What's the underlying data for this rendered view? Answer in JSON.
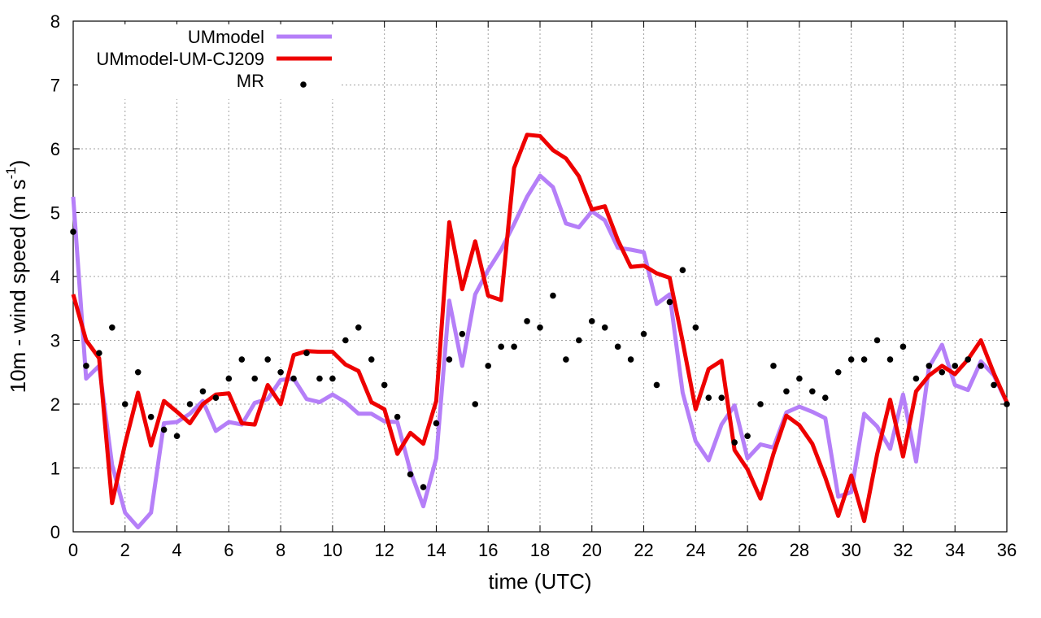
{
  "chart_data": {
    "type": "line",
    "title": "",
    "xlabel": "time (UTC)",
    "ylabel": {
      "prefix": "10m - wind speed  (m s",
      "sup": "-1",
      "suffix": ")"
    },
    "xlim": [
      0,
      36
    ],
    "ylim": [
      0,
      8
    ],
    "xticks": [
      0,
      2,
      4,
      6,
      8,
      10,
      12,
      14,
      16,
      18,
      20,
      22,
      24,
      26,
      28,
      30,
      32,
      34,
      36
    ],
    "yticks": [
      0,
      1,
      2,
      3,
      4,
      5,
      6,
      7,
      8
    ],
    "grid": true,
    "legend_position": "top-left",
    "colors": {
      "UMmodel": "#b57ff8",
      "UMmodel-UM-CJ209": "#ee0000",
      "MR": "#000000"
    },
    "series": [
      {
        "name": "UMmodel",
        "style": "line",
        "x": [
          0,
          0.5,
          1,
          1.5,
          2,
          2.5,
          3,
          3.5,
          4,
          4.5,
          5,
          5.5,
          6,
          6.5,
          7,
          7.5,
          8,
          8.5,
          9,
          9.5,
          10,
          10.5,
          11,
          11.5,
          12,
          12.5,
          13,
          13.5,
          14,
          14.5,
          15,
          15.5,
          16,
          16.5,
          17,
          17.5,
          18,
          18.5,
          19,
          19.5,
          20,
          20.5,
          21,
          21.5,
          22,
          22.5,
          23,
          23.5,
          24,
          24.5,
          25,
          25.5,
          26,
          26.5,
          27,
          27.5,
          28,
          28.5,
          29,
          29.5,
          30,
          30.5,
          31,
          31.5,
          32,
          32.5,
          33,
          33.5,
          34,
          34.5,
          35,
          35.5,
          36
        ],
        "values": [
          5.25,
          2.4,
          2.6,
          1.05,
          0.3,
          0.07,
          0.3,
          1.7,
          1.72,
          1.85,
          2.05,
          1.58,
          1.72,
          1.68,
          2.02,
          2.08,
          2.38,
          2.4,
          2.08,
          2.03,
          2.15,
          2.03,
          1.85,
          1.85,
          1.73,
          1.72,
          0.95,
          0.4,
          1.15,
          3.62,
          2.6,
          3.72,
          4.1,
          4.42,
          4.82,
          5.25,
          5.58,
          5.4,
          4.83,
          4.77,
          5.02,
          4.88,
          4.45,
          4.42,
          4.38,
          3.57,
          3.72,
          2.18,
          1.42,
          1.12,
          1.68,
          1.98,
          1.15,
          1.37,
          1.32,
          1.87,
          1.96,
          1.88,
          1.78,
          0.55,
          0.62,
          1.85,
          1.65,
          1.3,
          2.15,
          1.1,
          2.58,
          2.93,
          2.3,
          2.22,
          2.67,
          2.45,
          2.02
        ]
      },
      {
        "name": "UMmodel-UM-CJ209",
        "style": "line",
        "x": [
          0,
          0.5,
          1,
          1.5,
          2,
          2.5,
          3,
          3.5,
          4,
          4.5,
          5,
          5.5,
          6,
          6.5,
          7,
          7.5,
          8,
          8.5,
          9,
          9.5,
          10,
          10.5,
          11,
          11.5,
          12,
          12.5,
          13,
          13.5,
          14,
          14.5,
          15,
          15.5,
          16,
          16.5,
          17,
          17.5,
          18,
          18.5,
          19,
          19.5,
          20,
          20.5,
          21,
          21.5,
          22,
          22.5,
          23,
          23.5,
          24,
          24.5,
          25,
          25.5,
          26,
          26.5,
          27,
          27.5,
          28,
          28.5,
          29,
          29.5,
          30,
          30.5,
          31,
          31.5,
          32,
          32.5,
          33,
          33.5,
          34,
          34.5,
          35,
          35.5,
          36
        ],
        "values": [
          3.72,
          3.0,
          2.72,
          0.45,
          1.38,
          2.18,
          1.35,
          2.05,
          1.88,
          1.7,
          2.0,
          2.15,
          2.17,
          1.7,
          1.68,
          2.3,
          2.0,
          2.77,
          2.83,
          2.82,
          2.82,
          2.62,
          2.52,
          2.03,
          1.92,
          1.22,
          1.55,
          1.38,
          2.05,
          4.85,
          3.8,
          4.55,
          3.7,
          3.63,
          5.7,
          6.22,
          6.2,
          5.98,
          5.85,
          5.57,
          5.05,
          5.1,
          4.57,
          4.15,
          4.17,
          4.05,
          3.98,
          2.98,
          1.92,
          2.55,
          2.68,
          1.28,
          0.98,
          0.52,
          1.22,
          1.82,
          1.67,
          1.38,
          0.85,
          0.25,
          0.88,
          0.17,
          1.22,
          2.07,
          1.18,
          2.2,
          2.45,
          2.6,
          2.47,
          2.7,
          3.0,
          2.48,
          2.03
        ]
      },
      {
        "name": "MR",
        "style": "points",
        "x": [
          0,
          0.5,
          1,
          1.5,
          2,
          2.5,
          3,
          3.5,
          4,
          4.5,
          5,
          5.5,
          6,
          6.5,
          7,
          7.5,
          8,
          8.5,
          9,
          9.5,
          10,
          10.5,
          11,
          11.5,
          12,
          12.5,
          13,
          13.5,
          14,
          14.5,
          15,
          15.5,
          16,
          16.5,
          17,
          17.5,
          18,
          18.5,
          19,
          19.5,
          20,
          20.5,
          21,
          21.5,
          22,
          22.5,
          23,
          23.5,
          24,
          24.5,
          25,
          25.5,
          26,
          26.5,
          27,
          27.5,
          28,
          28.5,
          29,
          29.5,
          30,
          30.5,
          31,
          31.5,
          32,
          32.5,
          33,
          33.5,
          34,
          34.5,
          35,
          35.5,
          36
        ],
        "values": [
          4.7,
          2.6,
          2.8,
          3.2,
          2.0,
          2.5,
          1.8,
          1.6,
          1.5,
          2.0,
          2.2,
          2.1,
          2.4,
          2.7,
          2.4,
          2.7,
          2.5,
          2.4,
          2.8,
          2.4,
          2.4,
          3.0,
          3.2,
          2.7,
          2.3,
          1.8,
          0.9,
          0.7,
          1.7,
          2.7,
          3.1,
          2.0,
          2.6,
          2.9,
          2.9,
          3.3,
          3.2,
          3.7,
          2.7,
          3.0,
          3.3,
          3.2,
          2.9,
          2.7,
          3.1,
          2.3,
          3.6,
          4.1,
          3.2,
          2.1,
          2.1,
          1.4,
          1.5,
          2.0,
          2.6,
          2.2,
          2.4,
          2.2,
          2.1,
          2.5,
          2.7,
          2.7,
          3.0,
          2.7,
          2.9,
          2.4,
          2.6,
          2.5,
          2.6,
          2.7,
          2.6,
          2.3,
          2.0
        ]
      }
    ]
  }
}
